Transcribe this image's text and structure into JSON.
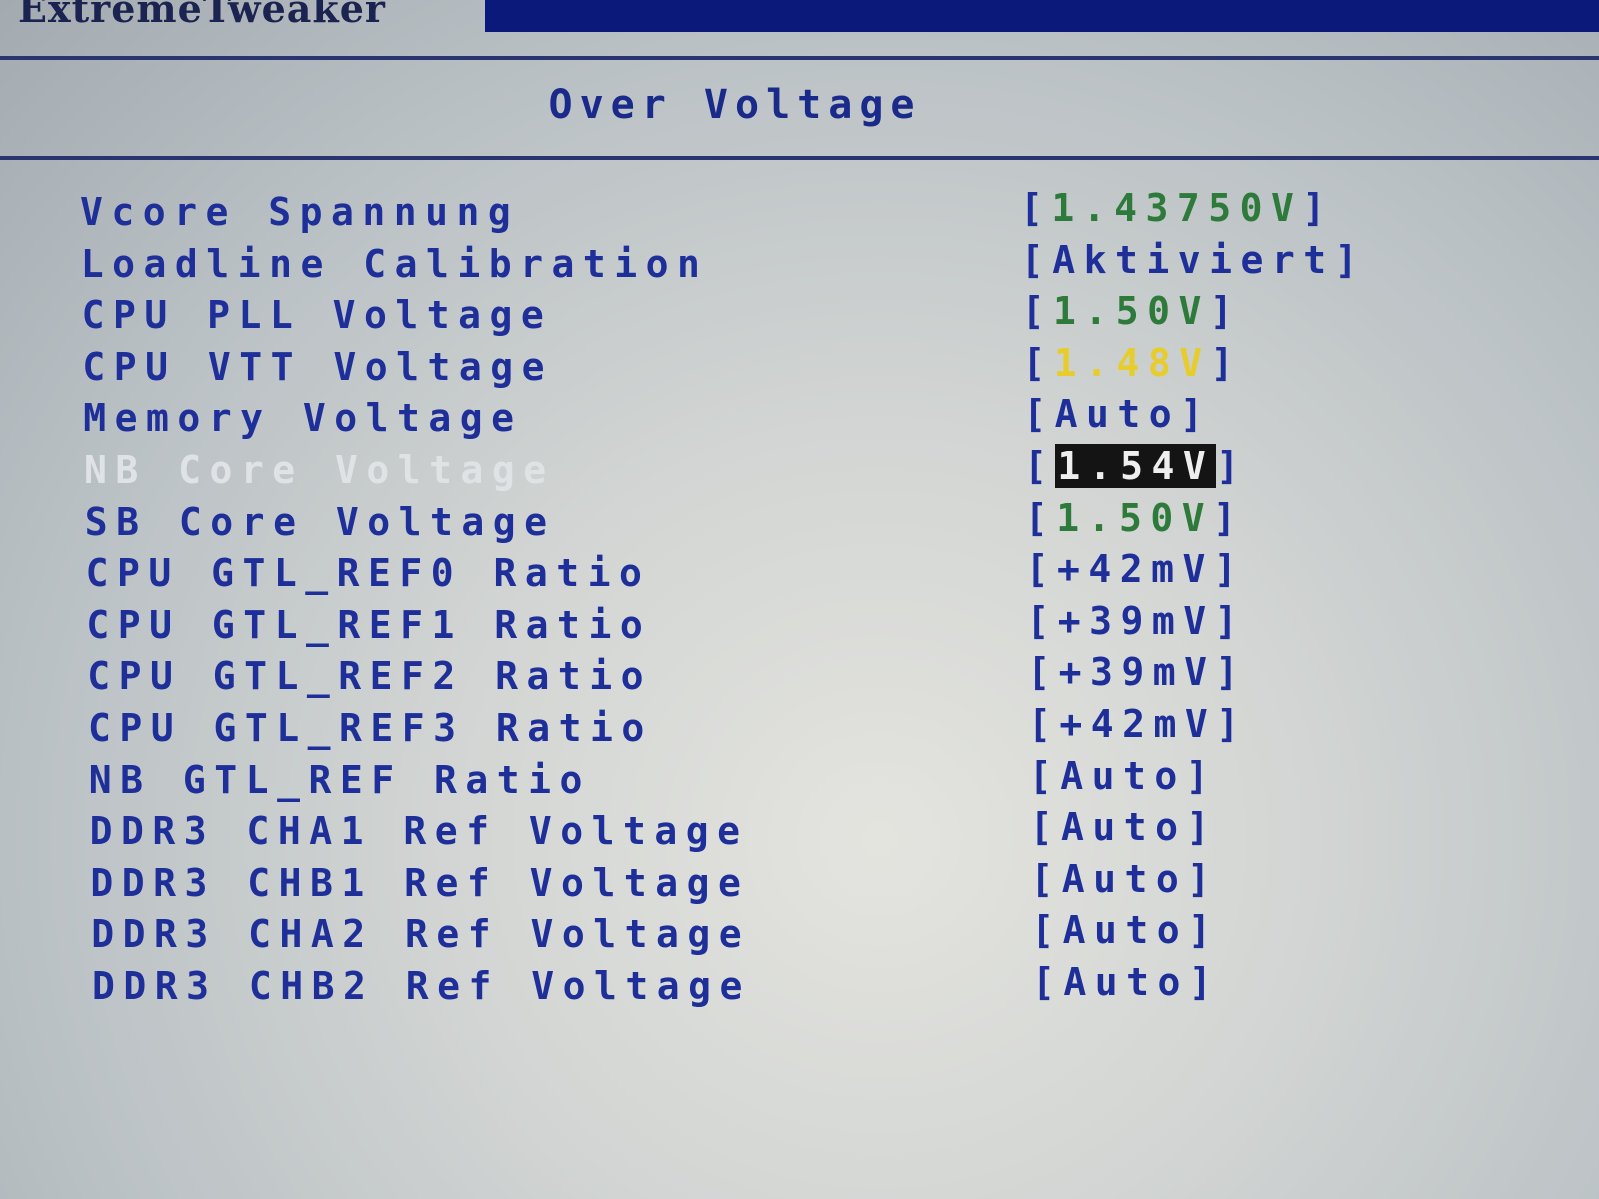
{
  "header": {
    "tab_label": "ExtremeTweaker",
    "accent": "#0b1a7a"
  },
  "page": {
    "title": "Over Voltage"
  },
  "colors": {
    "label": "#1e2f9a",
    "value_green": "#2d7a3a",
    "value_yellow": "#e7cd2c",
    "selected_bg": "#141414"
  },
  "settings": [
    {
      "label": "Vcore Spannung",
      "value": "1.43750V",
      "style": "green"
    },
    {
      "label": "Loadline Calibration",
      "value": "Aktiviert",
      "style": "blue"
    },
    {
      "label": "CPU PLL Voltage",
      "value": "1.50V",
      "style": "green"
    },
    {
      "label": "CPU VTT Voltage",
      "value": "1.48V",
      "style": "yellow"
    },
    {
      "label": "Memory Voltage",
      "value": "Auto",
      "style": "blue"
    },
    {
      "label": "NB Core Voltage",
      "value": "1.54V",
      "style": "selected"
    },
    {
      "label": "SB Core Voltage",
      "value": "1.50V",
      "style": "green"
    },
    {
      "label": "CPU GTL_REF0 Ratio",
      "value": "+42mV",
      "style": "blue"
    },
    {
      "label": "CPU GTL_REF1 Ratio",
      "value": "+39mV",
      "style": "blue"
    },
    {
      "label": "CPU GTL_REF2 Ratio",
      "value": "+39mV",
      "style": "blue"
    },
    {
      "label": "CPU GTL_REF3 Ratio",
      "value": "+42mV",
      "style": "blue"
    },
    {
      "label": "NB GTL_REF Ratio",
      "value": "Auto",
      "style": "blue"
    },
    {
      "label": "DDR3 CHA1 Ref Voltage",
      "value": "Auto",
      "style": "blue"
    },
    {
      "label": "DDR3 CHB1 Ref Voltage",
      "value": "Auto",
      "style": "blue"
    },
    {
      "label": "DDR3 CHA2 Ref Voltage",
      "value": "Auto",
      "style": "blue"
    },
    {
      "label": "DDR3 CHB2 Ref Voltage",
      "value": "Auto",
      "style": "blue"
    }
  ]
}
